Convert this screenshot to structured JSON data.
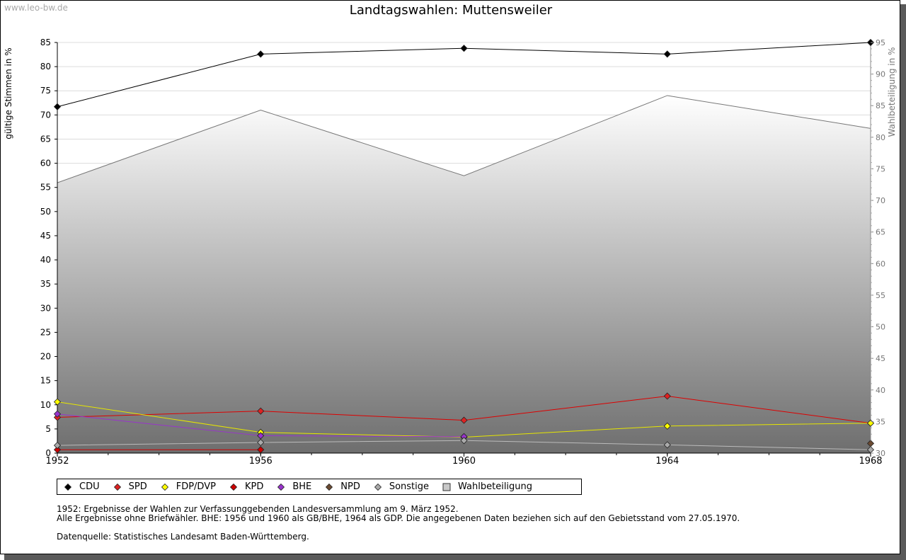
{
  "watermark": "www.leo-bw.de",
  "chart_data": {
    "type": "line",
    "title": "Landtagswahlen: Muttensweiler",
    "ylabel_left": "gültige Stimmen in %",
    "ylabel_right": "Wahlbeteiligung in %",
    "xlabel": "",
    "x": [
      1952,
      1956,
      1960,
      1964,
      1968
    ],
    "x_ticks": [
      "1952",
      "1956",
      "1960",
      "1964",
      "1968"
    ],
    "ylim_left": [
      0,
      85
    ],
    "yticks_left": [
      "0",
      "5",
      "10",
      "15",
      "20",
      "25",
      "30",
      "35",
      "40",
      "45",
      "50",
      "55",
      "60",
      "65",
      "70",
      "75",
      "80",
      "85"
    ],
    "ylim_right": [
      30,
      95
    ],
    "yticks_right": [
      "30",
      "35",
      "40",
      "45",
      "50",
      "55",
      "60",
      "65",
      "70",
      "75",
      "80",
      "85",
      "90",
      "95"
    ],
    "grid": true,
    "legend_position": "bottom-left",
    "series": [
      {
        "name": "CDU",
        "color": "#000000",
        "marker": "#000000",
        "values": [
          71.7,
          82.6,
          83.8,
          82.6,
          85.0
        ]
      },
      {
        "name": "SPD",
        "color": "#dd0000",
        "marker": "#dd2222",
        "values": [
          7.4,
          8.7,
          6.8,
          11.8,
          6.2
        ]
      },
      {
        "name": "FDP/DVP",
        "color": "#e6e600",
        "marker": "#ffff00",
        "values": [
          10.6,
          4.3,
          3.3,
          5.6,
          6.2
        ]
      },
      {
        "name": "KPD",
        "color": "#cc0000",
        "marker": "#cc0000",
        "values": [
          0.7,
          0.7,
          null,
          null,
          null
        ]
      },
      {
        "name": "BHE",
        "color": "#9933cc",
        "marker": "#9933cc",
        "values": [
          8.1,
          3.6,
          3.4,
          null,
          null
        ]
      },
      {
        "name": "NPD",
        "color": "#553322",
        "marker": "#6b4a32",
        "values": [
          null,
          null,
          null,
          null,
          2.0
        ]
      },
      {
        "name": "Sonstige",
        "color": "#bbbbbb",
        "marker": "#aaaaaa",
        "values": [
          1.6,
          2.2,
          2.6,
          1.7,
          0.7
        ]
      }
    ],
    "turnout": {
      "name": "Wahlbeteiligung",
      "color": "#777777",
      "values": [
        72.8,
        84.3,
        73.9,
        86.6,
        81.4
      ]
    }
  },
  "notes": [
    "1952: Ergebnisse der Wahlen zur Verfassunggebenden Landesversammlung am 9. März 1952.",
    "Alle Ergebnisse ohne Briefwähler. BHE: 1956 und 1960 als GB/BHE, 1964 als GDP. Die angegebenen Daten beziehen sich auf den Gebietsstand vom 27.05.1970.",
    "",
    "Datenquelle: Statistisches Landesamt Baden-Württemberg."
  ]
}
